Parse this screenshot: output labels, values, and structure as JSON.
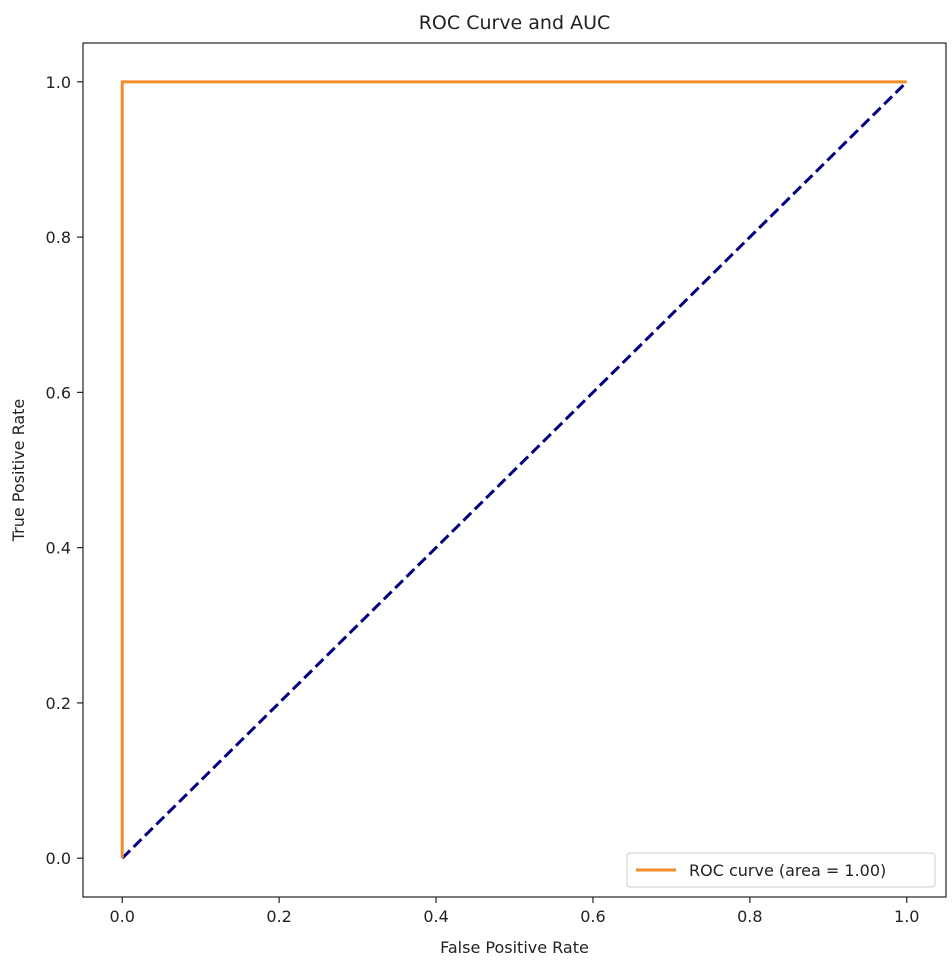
{
  "chart_data": {
    "type": "line",
    "title": "ROC Curve and AUC",
    "xlabel": "False Positive Rate",
    "ylabel": "True Positive Rate",
    "xlim": [
      -0.05,
      1.05
    ],
    "ylim": [
      -0.05,
      1.05
    ],
    "xticks": [
      0.0,
      0.2,
      0.4,
      0.6,
      0.8,
      1.0
    ],
    "xtick_labels": [
      "0.0",
      "0.2",
      "0.4",
      "0.6",
      "0.8",
      "1.0"
    ],
    "yticks": [
      0.0,
      0.2,
      0.4,
      0.6,
      0.8,
      1.0
    ],
    "ytick_labels": [
      "0.0",
      "0.2",
      "0.4",
      "0.6",
      "0.8",
      "1.0"
    ],
    "grid": false,
    "legend_position": "lower-right",
    "series": [
      {
        "name": "ROC curve (area = 1.00)",
        "x": [
          0.0,
          0.0,
          1.0
        ],
        "y": [
          0.0,
          1.0,
          1.0
        ],
        "color": "#f28e2b",
        "style": "solid",
        "in_legend": true
      },
      {
        "x": [
          0.0,
          1.0
        ],
        "y": [
          0.0,
          1.0
        ],
        "color": "#000080",
        "style": "dashed",
        "in_legend": false
      }
    ]
  }
}
